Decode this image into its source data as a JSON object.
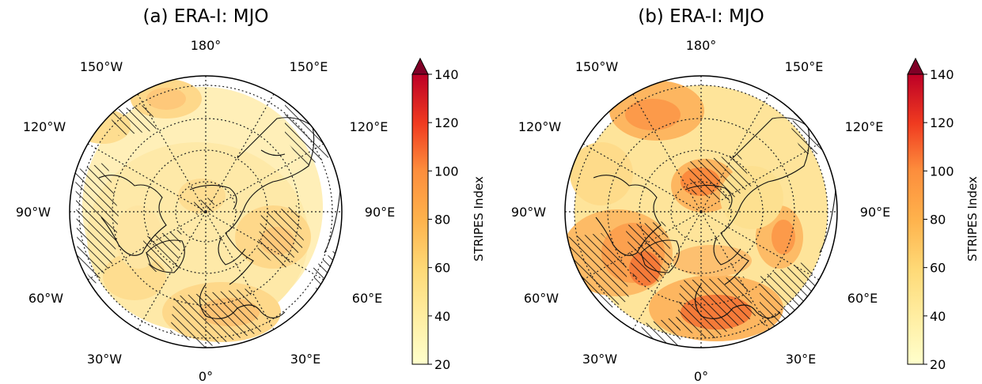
{
  "panels": [
    {
      "title": "(a) ERA-I: MJO",
      "lon_labels": {
        "top": "180°",
        "bottom": "0°",
        "w150": "150°W",
        "e150": "150°E",
        "w120": "120°W",
        "e120": "120°E",
        "w90": "90°W",
        "e90": "90°E",
        "w60": "60°W",
        "e60": "60°E",
        "w30": "30°W",
        "e30": "30°E"
      },
      "colorbar": {
        "label": "STRIPES Index",
        "ticks": [
          "20",
          "40",
          "60",
          "80",
          "100",
          "120",
          "140"
        ]
      }
    },
    {
      "title": "(b) ERA-I: MJO",
      "lon_labels": {
        "top": "180°",
        "bottom": "0°",
        "w150": "150°W",
        "e150": "150°E",
        "w120": "120°W",
        "e120": "120°E",
        "w90": "90°W",
        "e90": "90°E",
        "w60": "60°W",
        "e60": "60°E",
        "w30": "30°W",
        "e30": "30°E"
      },
      "colorbar": {
        "label": "STRIPES Index",
        "ticks": [
          "20",
          "40",
          "60",
          "80",
          "100",
          "120",
          "140"
        ]
      }
    }
  ],
  "map": {
    "projection": "north-polar-stereographic",
    "field": "STRIPES Index",
    "colormap": [
      "#ffffcc",
      "#fff2ae",
      "#ffe692",
      "#fed976",
      "#feb954",
      "#fd9e43",
      "#fd8d3c",
      "#fc6a32",
      "#f4492a",
      "#e31a1c",
      "#c80b22",
      "#a50026",
      "#800026"
    ],
    "colorbar_range": [
      20,
      140
    ],
    "colorbar_extend": "max",
    "hatching": "diagonal significance stippling",
    "gridlines": "dotted every 30° longitude and 20° latitude"
  }
}
